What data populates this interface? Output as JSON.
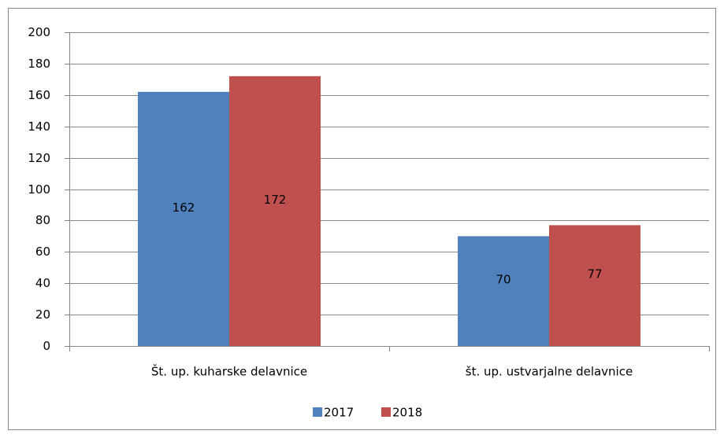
{
  "chart_data": {
    "type": "bar",
    "categories": [
      "Št. up. kuharske delavnice",
      "št. up. ustvarjalne delavnice"
    ],
    "series": [
      {
        "name": "2017",
        "color": "#4f81bd",
        "values": [
          162,
          70
        ]
      },
      {
        "name": "2018",
        "color": "#c0504d",
        "values": [
          172,
          77
        ]
      }
    ],
    "ylim": [
      0,
      200
    ],
    "yticks": [
      0,
      20,
      40,
      60,
      80,
      100,
      120,
      140,
      160,
      180,
      200
    ],
    "grid": true,
    "legend": "bottom"
  }
}
